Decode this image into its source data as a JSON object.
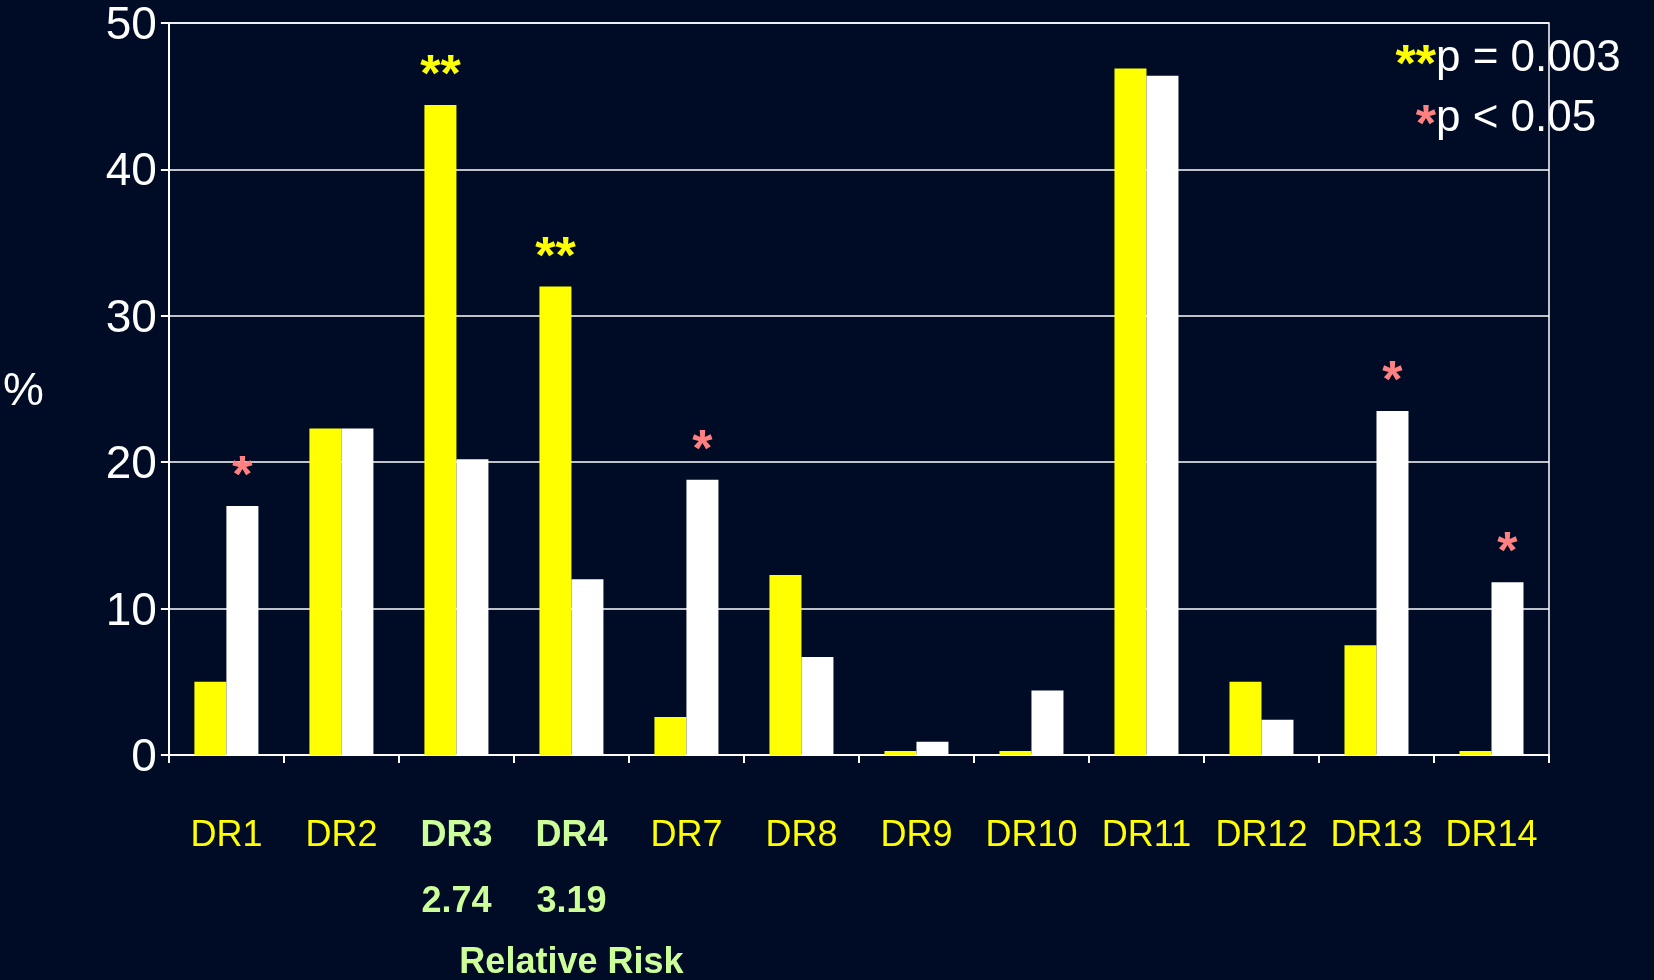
{
  "chart_data": {
    "type": "bar",
    "ylabel": "%",
    "categories": [
      "DR1",
      "DR2",
      "DR3\n2.74",
      "DR4\n3.19",
      "DR7",
      "DR8",
      "DR9",
      "DR10",
      "DR11",
      "DR12",
      "DR13",
      "DR14"
    ],
    "series": [
      {
        "color": "#ffff00",
        "values": [
          5.0,
          22.3,
          44.4,
          32.0,
          2.6,
          12.3,
          0,
          0,
          46.9,
          5.0,
          7.5,
          0
        ]
      },
      {
        "color": "#ffffff",
        "values": [
          17.0,
          22.3,
          20.2,
          12.0,
          18.8,
          6.7,
          0.9,
          4.4,
          46.4,
          2.4,
          23.5,
          11.8
        ]
      }
    ],
    "ylim": [
      0,
      50
    ],
    "yticks": [
      0,
      10,
      20,
      30,
      40,
      50
    ],
    "grid": "y",
    "annotations": [
      {
        "text": "*",
        "x": "DR1",
        "y": 17.0
      },
      {
        "text": "**",
        "x": "DR3\n2.74",
        "y": 44.4
      },
      {
        "text": "**",
        "x": "DR4\n3.19",
        "y": 32.0
      },
      {
        "text": "*",
        "x": "DR7",
        "y": 18.8
      },
      {
        "text": "*",
        "x": "DR13",
        "y": 23.5
      },
      {
        "text": "*",
        "x": "DR14",
        "y": 11.8
      },
      "**p = 0.003",
      "*p < 0.05",
      "Relative Risk"
    ]
  }
}
